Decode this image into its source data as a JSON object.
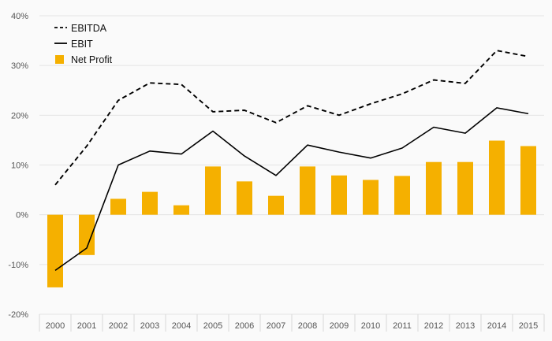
{
  "chart_data": {
    "type": "bar",
    "title": "",
    "xlabel": "",
    "ylabel": "",
    "categories": [
      "2000",
      "2001",
      "2002",
      "2003",
      "2004",
      "2005",
      "2006",
      "2007",
      "2008",
      "2009",
      "2010",
      "2011",
      "2012",
      "2013",
      "2014",
      "2015"
    ],
    "ylim": [
      -20,
      40
    ],
    "y_ticks": [
      -20,
      -10,
      0,
      10,
      20,
      30,
      40
    ],
    "y_tick_labels": [
      "-20%",
      "-10%",
      "0%",
      "10%",
      "20%",
      "30%",
      "40%"
    ],
    "grid": true,
    "legend_position": "top-left",
    "series": [
      {
        "name": "EBITDA",
        "type": "line",
        "style": "dashed",
        "color": "#000000",
        "values": [
          6.0,
          13.8,
          23.0,
          26.5,
          26.2,
          20.7,
          21.0,
          18.5,
          21.9,
          20.0,
          22.3,
          24.3,
          27.1,
          26.4,
          33.0,
          31.8
        ]
      },
      {
        "name": "EBIT",
        "type": "line",
        "style": "solid",
        "color": "#000000",
        "values": [
          -11.2,
          -6.7,
          10.0,
          12.8,
          12.2,
          16.8,
          11.8,
          7.9,
          14.0,
          12.6,
          11.4,
          13.4,
          17.6,
          16.4,
          21.5,
          20.3
        ]
      },
      {
        "name": "Net Profit",
        "type": "bar",
        "color": "#f5b000",
        "values": [
          -14.6,
          -8.1,
          3.2,
          4.6,
          1.9,
          9.7,
          6.7,
          3.8,
          9.7,
          7.9,
          7.0,
          7.8,
          10.6,
          10.6,
          14.9,
          13.8
        ]
      }
    ]
  }
}
